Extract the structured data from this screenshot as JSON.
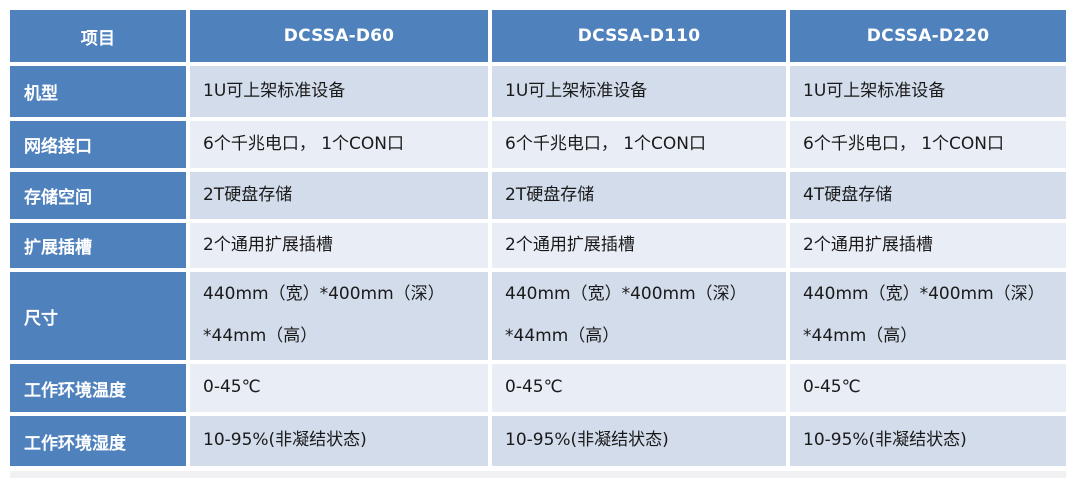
{
  "colors": {
    "header_bg": "#4F81BD",
    "label_bg": "#4F81BD",
    "band_odd_bg": "#D2DCEB",
    "band_even_bg": "#E9EDF6",
    "header_text": "#FFFFFF",
    "data_text": "#1A1A1A",
    "background": "#FFFFFF"
  },
  "table": {
    "columns": [
      "项目",
      "DCSSA-D60",
      "DCSSA-D110",
      "DCSSA-D220"
    ],
    "rows": [
      {
        "label": "机型",
        "cells": [
          "1U可上架标准设备",
          "1U可上架标准设备",
          "1U可上架标准设备"
        ]
      },
      {
        "label": "网络接口",
        "cells": [
          "6个千兆电口， 1个CON口",
          "6个千兆电口， 1个CON口",
          "6个千兆电口， 1个CON口"
        ]
      },
      {
        "label": "存储空间",
        "cells": [
          "2T硬盘存储",
          "2T硬盘存储",
          "4T硬盘存储"
        ]
      },
      {
        "label": "扩展插槽",
        "cells": [
          "2个通用扩展插槽",
          "2个通用扩展插槽",
          "2个通用扩展插槽"
        ]
      },
      {
        "label": "尺寸",
        "cells": [
          "440mm（宽）*400mm（深）\n*44mm（高）",
          "440mm（宽）*400mm（深）\n*44mm（高）",
          "440mm（宽）*400mm（深）\n*44mm（高）"
        ]
      },
      {
        "label": "工作环境温度",
        "cells": [
          "0-45℃",
          "0-45℃",
          "0-45℃"
        ]
      },
      {
        "label": "工作环境湿度",
        "cells": [
          "10-95%(非凝结状态)",
          "10-95%(非凝结状态)",
          "10-95%(非凝结状态)"
        ]
      }
    ]
  }
}
